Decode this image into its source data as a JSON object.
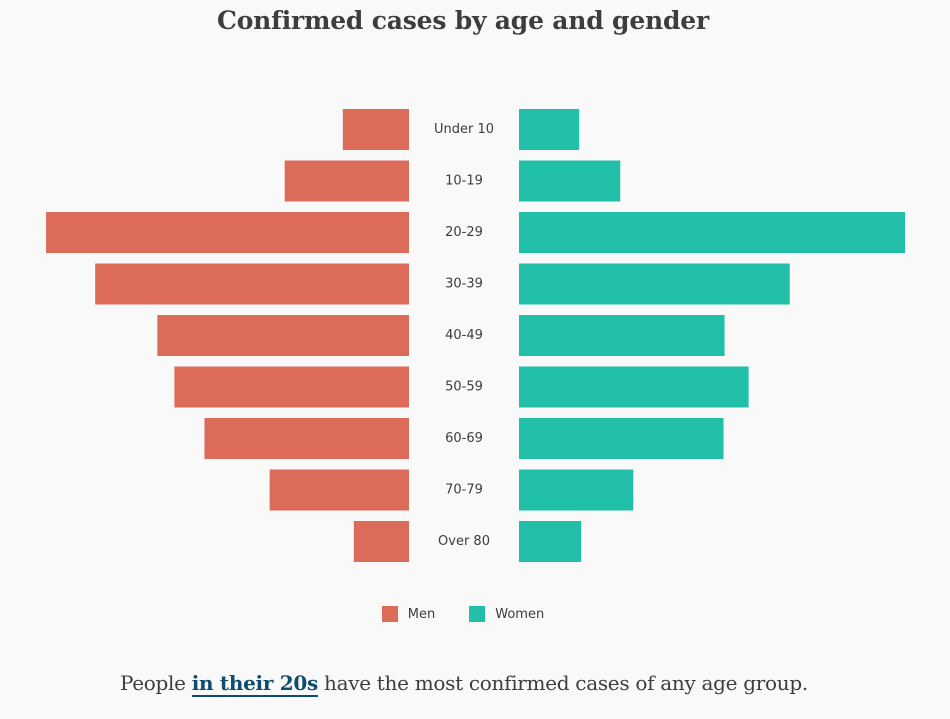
{
  "chart_data": {
    "type": "bar",
    "orientation": "horizontal-butterfly",
    "title": "Confirmed cases by age and gender",
    "categories": [
      "Under 10",
      "10-19",
      "20-29",
      "30-39",
      "40-49",
      "50-59",
      "60-69",
      "70-79",
      "Over 80"
    ],
    "series": [
      {
        "name": "Men",
        "color": "#dc6b5a",
        "values": [
          66,
          124,
          362,
          313,
          251,
          234,
          204,
          139,
          55
        ]
      },
      {
        "name": "Women",
        "color": "#21bea8",
        "values": [
          60,
          101,
          385,
          270,
          205,
          229,
          204,
          114,
          62
        ]
      }
    ],
    "xlim": [
      0,
      385
    ],
    "grid": false,
    "legend": "bottom-center"
  },
  "caption": {
    "before": "People ",
    "link": "in their 20s",
    "after": " have the most confirmed cases of any age group."
  }
}
